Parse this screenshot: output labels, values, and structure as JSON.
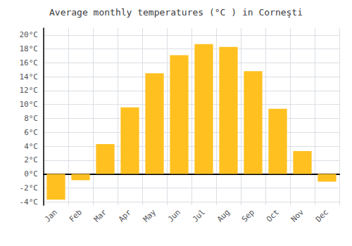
{
  "chart_data": {
    "type": "bar",
    "title": "Average monthly temperatures (°C ) in Corneşti",
    "categories": [
      "Jan",
      "Feb",
      "Mar",
      "Apr",
      "May",
      "Jun",
      "Jul",
      "Aug",
      "Sep",
      "Oct",
      "Nov",
      "Dec"
    ],
    "values": [
      -3.7,
      -0.9,
      4.3,
      9.6,
      14.5,
      17.1,
      18.7,
      18.3,
      14.8,
      9.4,
      3.3,
      -1.1
    ],
    "color": "#FFC020",
    "ylim": [
      -4.5,
      21
    ],
    "yticks": [
      {
        "value": -4,
        "label": "-4°C"
      },
      {
        "value": -2,
        "label": "-2°C"
      },
      {
        "value": 0,
        "label": "0°C"
      },
      {
        "value": 2,
        "label": "2°C"
      },
      {
        "value": 4,
        "label": "4°C"
      },
      {
        "value": 6,
        "label": "6°C"
      },
      {
        "value": 8,
        "label": "8°C"
      },
      {
        "value": 10,
        "label": "10°C"
      },
      {
        "value": 12,
        "label": "12°C"
      },
      {
        "value": 14,
        "label": "14°C"
      },
      {
        "value": 16,
        "label": "16°C"
      },
      {
        "value": 18,
        "label": "18°C"
      },
      {
        "value": 20,
        "label": "20°C"
      }
    ],
    "grid": true
  }
}
